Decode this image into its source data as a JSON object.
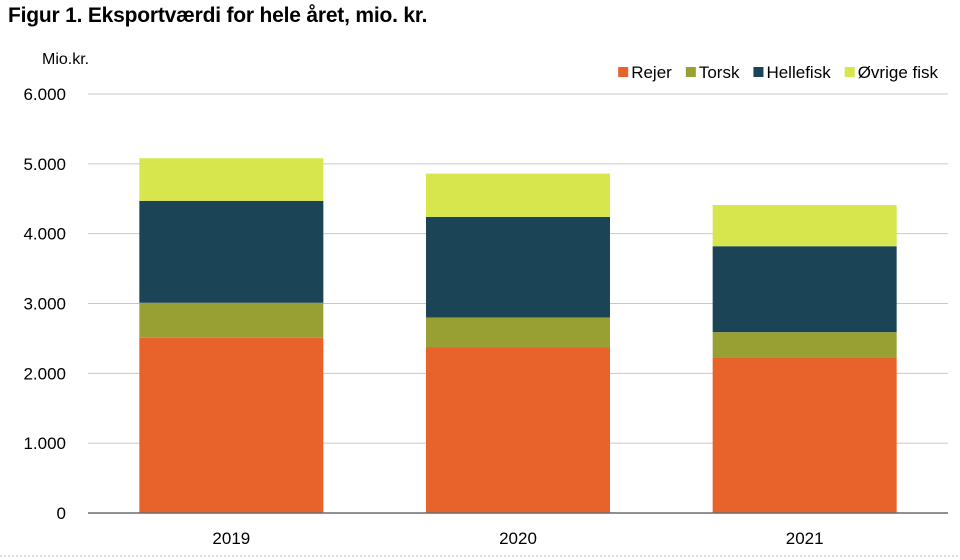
{
  "figure_title": "Figur 1. Eksportværdi for hele året, mio. kr.",
  "chart_data": {
    "type": "bar",
    "stacked": true,
    "title": "Figur 1. Eksportværdi for hele året, mio. kr.",
    "ylabel": "Mio.kr.",
    "xlabel": "",
    "ylim": [
      0,
      6000
    ],
    "yticks": [
      0,
      1000,
      2000,
      3000,
      4000,
      5000,
      6000
    ],
    "ytick_labels": [
      "0",
      "1.000",
      "2.000",
      "3.000",
      "4.000",
      "5.000",
      "6.000"
    ],
    "grid": true,
    "legend_position": "top-right",
    "categories": [
      "2019",
      "2020",
      "2021"
    ],
    "series": [
      {
        "name": "Rejer",
        "color": "#e8622c",
        "values": [
          2510,
          2370,
          2220
        ]
      },
      {
        "name": "Torsk",
        "color": "#98a034",
        "values": [
          500,
          430,
          370
        ]
      },
      {
        "name": "Hellefisk",
        "color": "#1c4457",
        "values": [
          1460,
          1440,
          1230
        ]
      },
      {
        "name": "Øvrige fisk",
        "color": "#d6e64c",
        "values": [
          610,
          620,
          590
        ]
      }
    ]
  }
}
